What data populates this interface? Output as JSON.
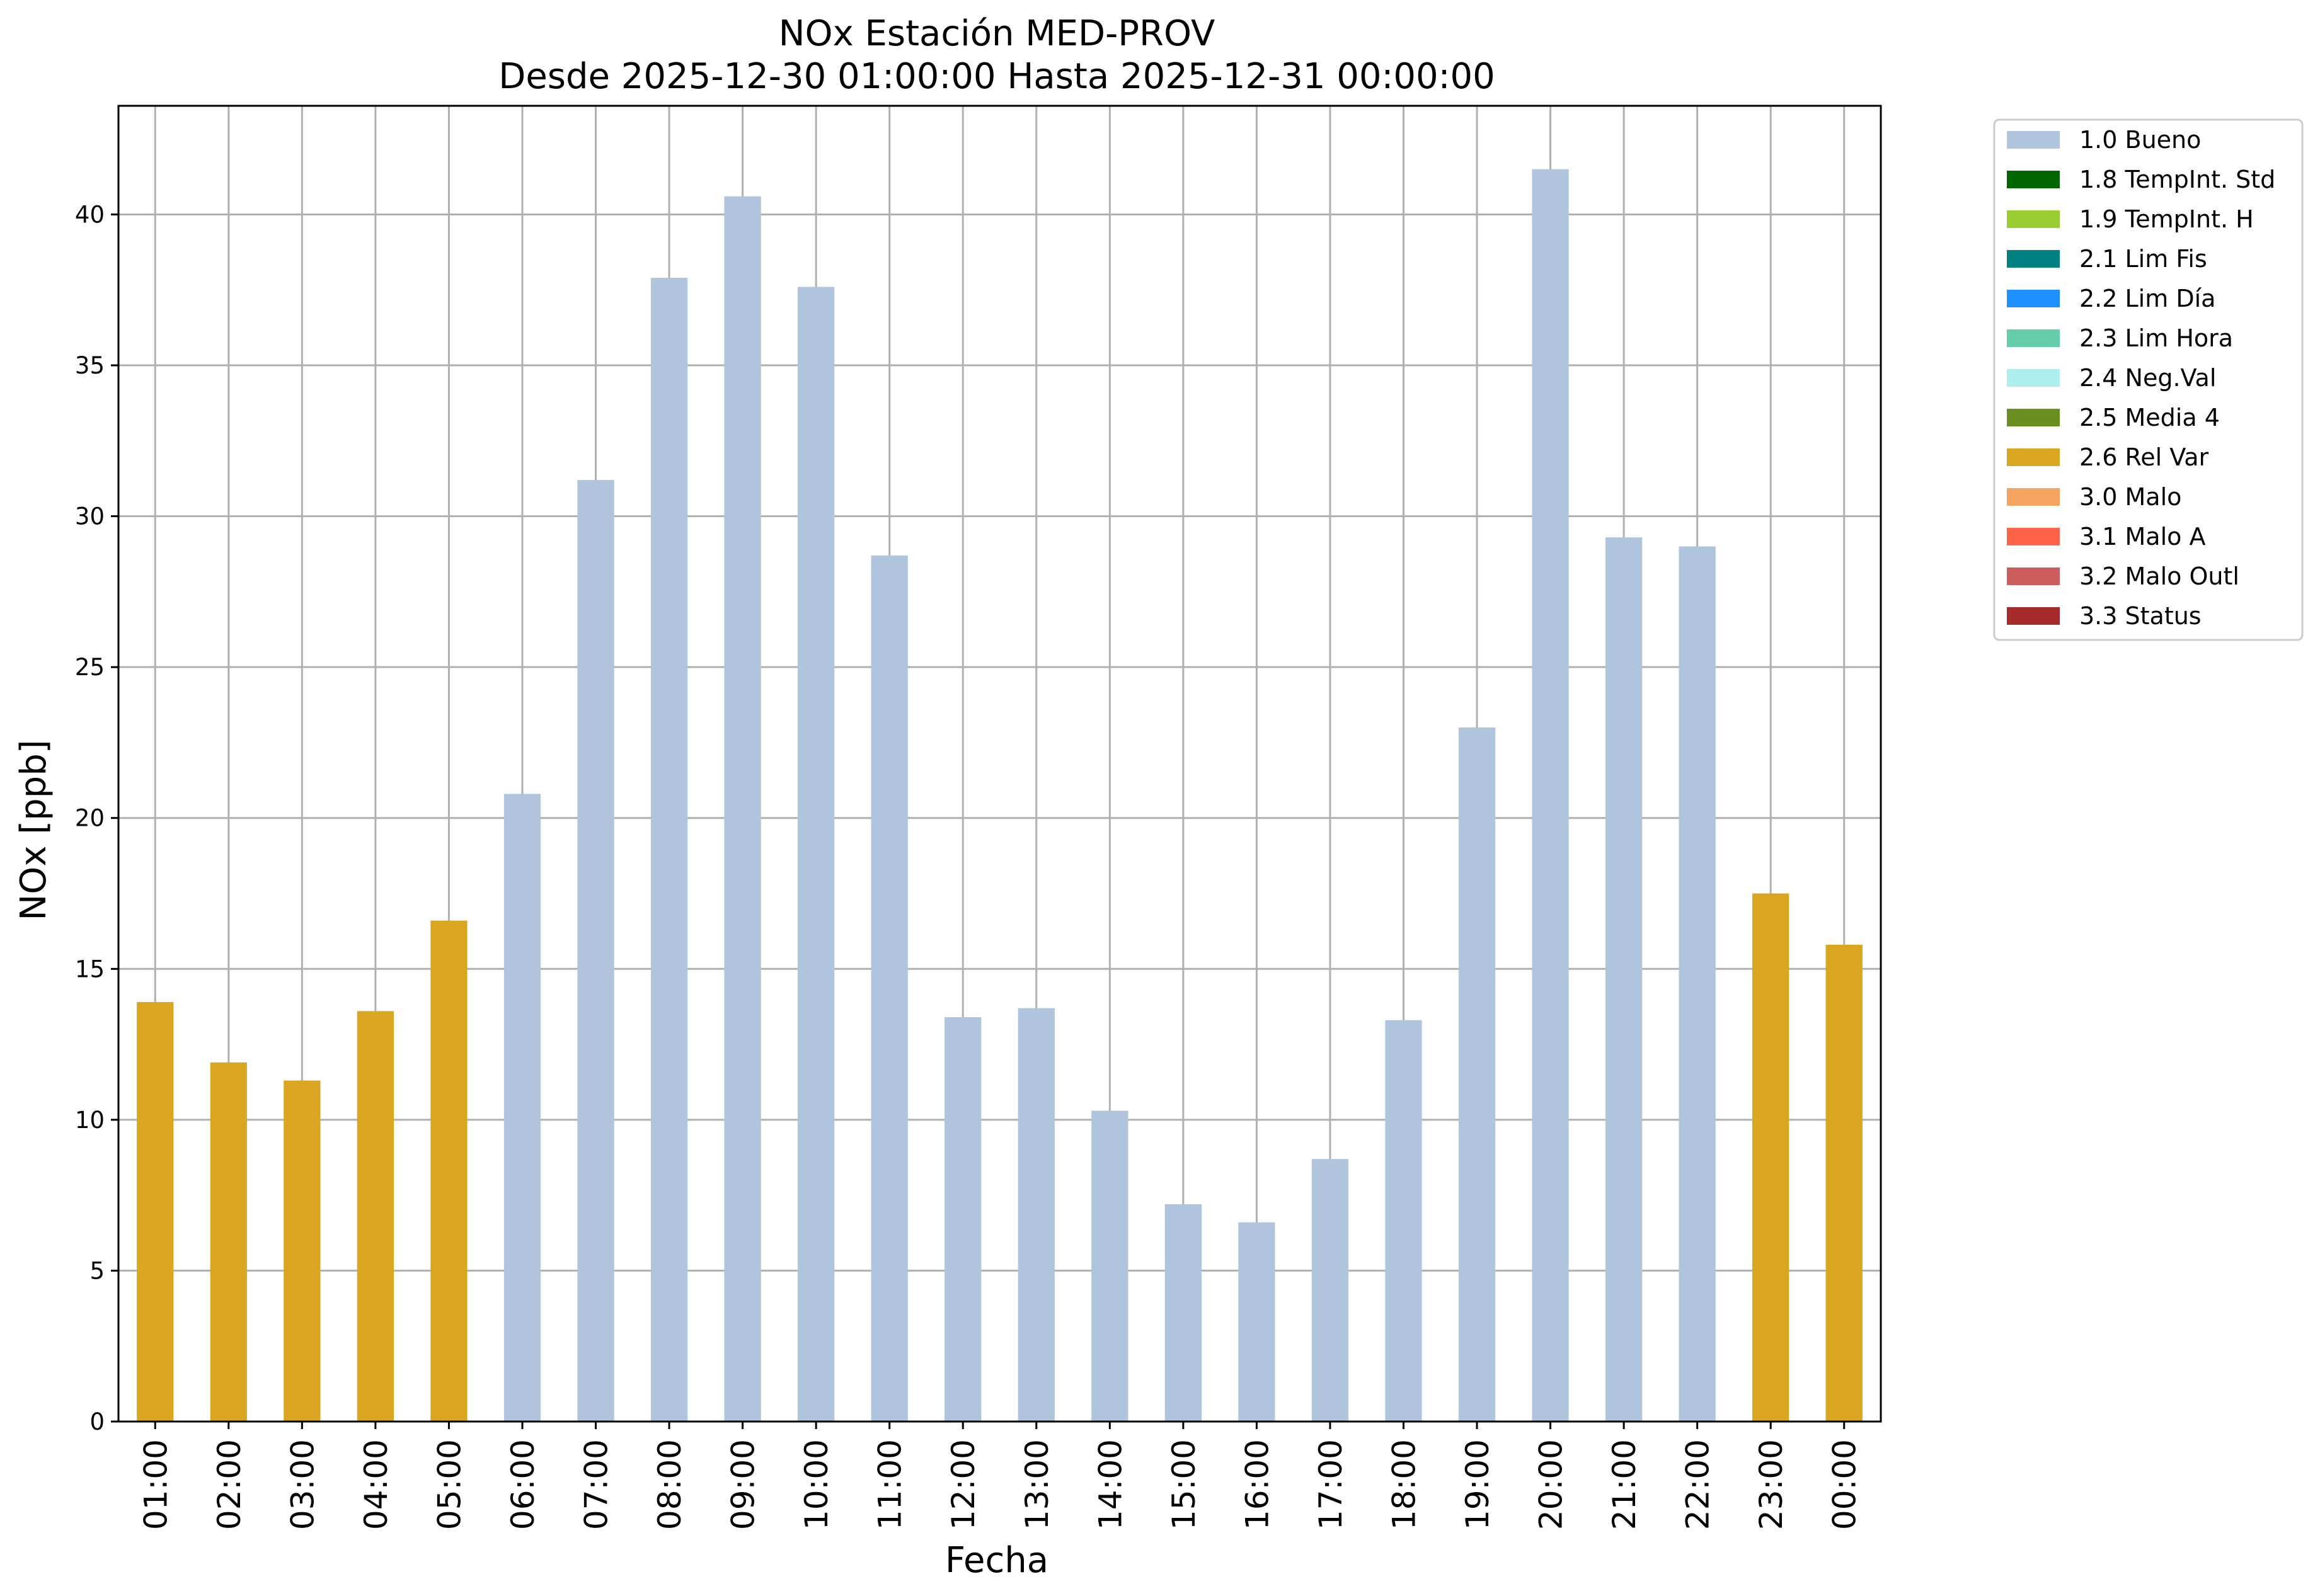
{
  "chart_data": {
    "type": "bar",
    "title": "NOx Estación MED-PROV",
    "subtitle": "Desde 2025-12-30 01:00:00 Hasta 2025-12-31 00:00:00",
    "xlabel": "Fecha",
    "ylabel": "NOx [ppb]",
    "ylim": [
      0,
      43.6
    ],
    "yticks": [
      0,
      5,
      10,
      15,
      20,
      25,
      30,
      35,
      40
    ],
    "grid": true,
    "legend_position": "outside-top-right",
    "categories": [
      "01:00",
      "02:00",
      "03:00",
      "04:00",
      "05:00",
      "06:00",
      "07:00",
      "08:00",
      "09:00",
      "10:00",
      "11:00",
      "12:00",
      "13:00",
      "14:00",
      "15:00",
      "16:00",
      "17:00",
      "18:00",
      "19:00",
      "20:00",
      "21:00",
      "22:00",
      "23:00",
      "00:00"
    ],
    "values": [
      13.9,
      11.9,
      11.3,
      13.6,
      16.6,
      20.8,
      31.2,
      37.9,
      40.6,
      37.6,
      28.7,
      13.4,
      13.7,
      10.3,
      7.2,
      6.6,
      8.7,
      13.3,
      23.0,
      41.5,
      29.3,
      29.0,
      17.5,
      15.8
    ],
    "flags": [
      "2.6 Rel Var",
      "2.6 Rel Var",
      "2.6 Rel Var",
      "2.6 Rel Var",
      "2.6 Rel Var",
      "1.0 Bueno",
      "1.0 Bueno",
      "1.0 Bueno",
      "1.0 Bueno",
      "1.0 Bueno",
      "1.0 Bueno",
      "1.0 Bueno",
      "1.0 Bueno",
      "1.0 Bueno",
      "1.0 Bueno",
      "1.0 Bueno",
      "1.0 Bueno",
      "1.0 Bueno",
      "1.0 Bueno",
      "1.0 Bueno",
      "1.0 Bueno",
      "1.0 Bueno",
      "2.6 Rel Var",
      "2.6 Rel Var"
    ],
    "legend": [
      {
        "label": "1.0 Bueno",
        "color": "#b0c4de"
      },
      {
        "label": "1.8 TempInt. Std",
        "color": "#006400"
      },
      {
        "label": "1.9 TempInt. H",
        "color": "#9acd32"
      },
      {
        "label": "2.1 Lim Fis",
        "color": "#008080"
      },
      {
        "label": "2.2 Lim Día",
        "color": "#1e90ff"
      },
      {
        "label": "2.3 Lim Hora",
        "color": "#66cdaa"
      },
      {
        "label": "2.4 Neg.Val",
        "color": "#afeeee"
      },
      {
        "label": "2.5 Media 4",
        "color": "#6b8e23"
      },
      {
        "label": "2.6 Rel Var",
        "color": "#daa520"
      },
      {
        "label": "3.0 Malo",
        "color": "#f4a460"
      },
      {
        "label": "3.1 Malo A",
        "color": "#ff6347"
      },
      {
        "label": "3.2 Malo Outl",
        "color": "#cd5c5c"
      },
      {
        "label": "3.3 Status",
        "color": "#a52a2a"
      }
    ]
  }
}
